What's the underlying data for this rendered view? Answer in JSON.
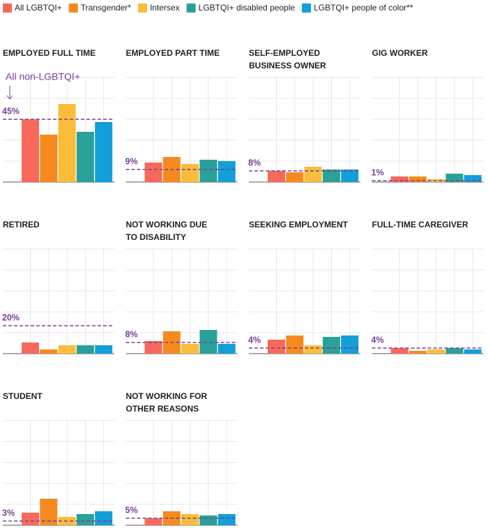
{
  "legend": [
    {
      "name": "All LGBTQI+",
      "color": "#f8695b"
    },
    {
      "name": "Transgender*",
      "color": "#f68a1f"
    },
    {
      "name": "Intersex",
      "color": "#fbbc3b"
    },
    {
      "name": "LGBTQI+ disabled people",
      "color": "#2aa198"
    },
    {
      "name": "LGBTQI+ people of color**",
      "color": "#139fd8"
    }
  ],
  "chart_data": [
    {
      "type": "bar",
      "title": [
        "EMPLOYED FULL TIME"
      ],
      "values": [
        45,
        34,
        56,
        36,
        43
      ],
      "reference": {
        "value": 45,
        "label": "45%"
      },
      "annotation": "All non-LGBTQI+",
      "ylim": [
        0,
        75
      ],
      "yticks": [
        0,
        15,
        30,
        45,
        60,
        75
      ]
    },
    {
      "type": "bar",
      "title": [
        "EMPLOYED PART TIME"
      ],
      "values": [
        14,
        18,
        13,
        16,
        15
      ],
      "reference": {
        "value": 9,
        "label": "9%"
      },
      "ylim": [
        0,
        75
      ],
      "yticks": [
        0,
        15,
        30,
        45,
        60,
        75
      ]
    },
    {
      "type": "bar",
      "title": [
        "SELF-EMPLOYED",
        "BUSINESS OWNER"
      ],
      "values": [
        8,
        7,
        11,
        9,
        9
      ],
      "reference": {
        "value": 8,
        "label": "8%"
      },
      "ylim": [
        0,
        75
      ],
      "yticks": [
        0,
        15,
        30,
        45,
        60,
        75
      ]
    },
    {
      "type": "bar",
      "title": [
        "GIG WORKER"
      ],
      "values": [
        4,
        4,
        2,
        6,
        5
      ],
      "reference": {
        "value": 1,
        "label": "1%"
      },
      "ylim": [
        0,
        75
      ],
      "yticks": [
        0,
        15,
        30,
        45,
        60,
        75
      ]
    },
    {
      "type": "bar",
      "title": [
        "RETIRED"
      ],
      "values": [
        8,
        3,
        6,
        6,
        6
      ],
      "reference": {
        "value": 20,
        "label": "20%"
      },
      "ylim": [
        0,
        75
      ],
      "yticks": [
        0,
        15,
        30,
        45,
        60,
        75
      ]
    },
    {
      "type": "bar",
      "title": [
        "NOT WORKING DUE",
        "TO DISABILITY"
      ],
      "values": [
        9,
        16,
        7,
        17,
        7
      ],
      "reference": {
        "value": 8,
        "label": "8%"
      },
      "ylim": [
        0,
        75
      ],
      "yticks": [
        0,
        15,
        30,
        45,
        60,
        75
      ]
    },
    {
      "type": "bar",
      "title": [
        "SEEKING EMPLOYMENT"
      ],
      "values": [
        10,
        13,
        6,
        12,
        13
      ],
      "reference": {
        "value": 4,
        "label": "4%"
      },
      "ylim": [
        0,
        75
      ],
      "yticks": [
        0,
        15,
        30,
        45,
        60,
        75
      ]
    },
    {
      "type": "bar",
      "title": [
        "FULL-TIME CAREGIVER"
      ],
      "values": [
        4,
        2,
        3,
        4,
        3
      ],
      "reference": {
        "value": 4,
        "label": "4%"
      },
      "ylim": [
        0,
        75
      ],
      "yticks": [
        0,
        15,
        30,
        45,
        60,
        75
      ]
    },
    {
      "type": "bar",
      "title": [
        "STUDENT"
      ],
      "values": [
        9,
        19,
        6,
        8,
        10
      ],
      "reference": {
        "value": 3,
        "label": "3%"
      },
      "ylim": [
        0,
        75
      ],
      "yticks": [
        0,
        15,
        30,
        45,
        60,
        75
      ]
    },
    {
      "type": "bar",
      "title": [
        "NOT WORKING FOR",
        "OTHER REASONS"
      ],
      "values": [
        5,
        10,
        8,
        7,
        8
      ],
      "reference": {
        "value": 5,
        "label": "5%"
      },
      "ylim": [
        0,
        75
      ],
      "yticks": [
        0,
        15,
        30,
        45,
        60,
        75
      ]
    }
  ]
}
